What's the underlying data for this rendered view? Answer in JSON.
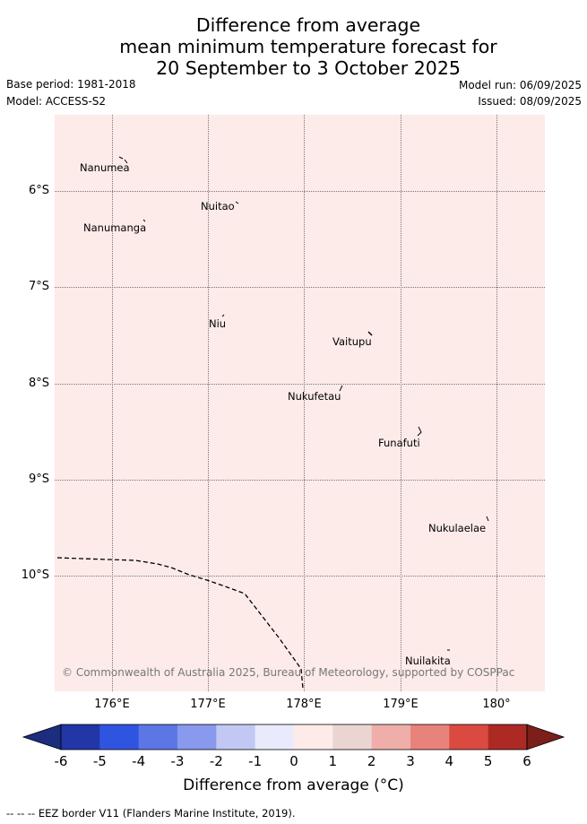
{
  "title": {
    "line1": "Difference from average",
    "line2": "mean minimum temperature forecast for",
    "line3": "20 September to 3 October 2025"
  },
  "meta": {
    "base_period": "Base period: 1981-2018",
    "model": "Model: ACCESS-S2",
    "model_run": "Model run: 06/09/2025",
    "issued": "Issued: 08/09/2025"
  },
  "map": {
    "fill_color": "#fcebe9",
    "fill_value_range": [
      0,
      1
    ],
    "lat_labels": [
      "6°S",
      "7°S",
      "8°S",
      "9°S",
      "10°S"
    ],
    "lon_labels": [
      "176°E",
      "177°E",
      "178°E",
      "179°E",
      "180°"
    ],
    "islands": [
      "Nanumea",
      "Nuitao",
      "Nanumanga",
      "Niu",
      "Vaitupu",
      "Nukufetau",
      "Funafuti",
      "Nukulaelae",
      "Nuilakita"
    ],
    "copyright": "© Commonwealth of Australia 2025, Bureau of Meteorology, supported by COSPPac"
  },
  "colorbar": {
    "ticks": [
      "-6",
      "-5",
      "-4",
      "-3",
      "-2",
      "-1",
      "0",
      "1",
      "2",
      "3",
      "4",
      "5",
      "6"
    ],
    "colors": [
      "#2236a8",
      "#2f55e0",
      "#5c76e6",
      "#8899ee",
      "#c2c8f4",
      "#e9ebfc",
      "#fcebe9",
      "#ebd5d3",
      "#efaeaa",
      "#e8837c",
      "#db4a40",
      "#ad2a24"
    ],
    "min_extend_color": "#1c2c7e",
    "max_extend_color": "#7c1e1a",
    "label": "Difference from average (°C)"
  },
  "footnote": "-- -- -- EEZ border V11 (Flanders Marine Institute, 2019)."
}
